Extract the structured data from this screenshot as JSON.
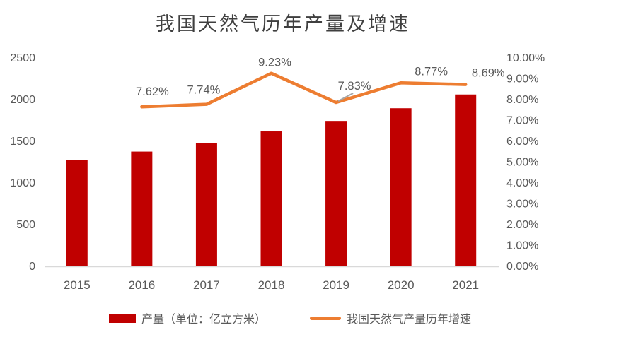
{
  "page": {
    "background": "#ffffff"
  },
  "chart_data": {
    "type": "combo-bar-line",
    "title": "我国天然气历年产量及增速",
    "categories": [
      "2015",
      "2016",
      "2017",
      "2018",
      "2019",
      "2020",
      "2021"
    ],
    "series": [
      {
        "name": "产量（单位：亿立方米）",
        "type": "bar",
        "axis": "left",
        "color": "#c00000",
        "values": [
          1271,
          1368,
          1474,
          1610,
          1736,
          1888,
          2053
        ]
      },
      {
        "name": "我国天然气产量历年增速",
        "type": "line",
        "axis": "right",
        "color": "#ed7d31",
        "values": [
          null,
          7.62,
          7.74,
          9.23,
          7.83,
          8.77,
          8.69
        ],
        "point_labels": [
          "",
          "7.62%",
          "7.74%",
          "9.23%",
          "7.83%",
          "8.77%",
          "8.69%"
        ]
      }
    ],
    "left_axis": {
      "min": 0,
      "max": 2500,
      "tick_labels_top_to_bottom": [
        "2500",
        "2000",
        "1500",
        "1000",
        "500",
        "0"
      ]
    },
    "right_axis": {
      "min": 0,
      "max": 10,
      "tick_labels_top_to_bottom": [
        "10.00%",
        "9.00%",
        "8.00%",
        "7.00%",
        "6.00%",
        "5.00%",
        "4.00%",
        "3.00%",
        "2.00%",
        "1.00%",
        "0.00%"
      ]
    },
    "grid": false,
    "legend_position": "bottom",
    "colors": {
      "axis_text": "#595959",
      "data_label_text": "#595959",
      "baseline": "#d9d9d9",
      "leader_line": "#a6a6a6",
      "title_text": "#3f3f3f"
    }
  }
}
